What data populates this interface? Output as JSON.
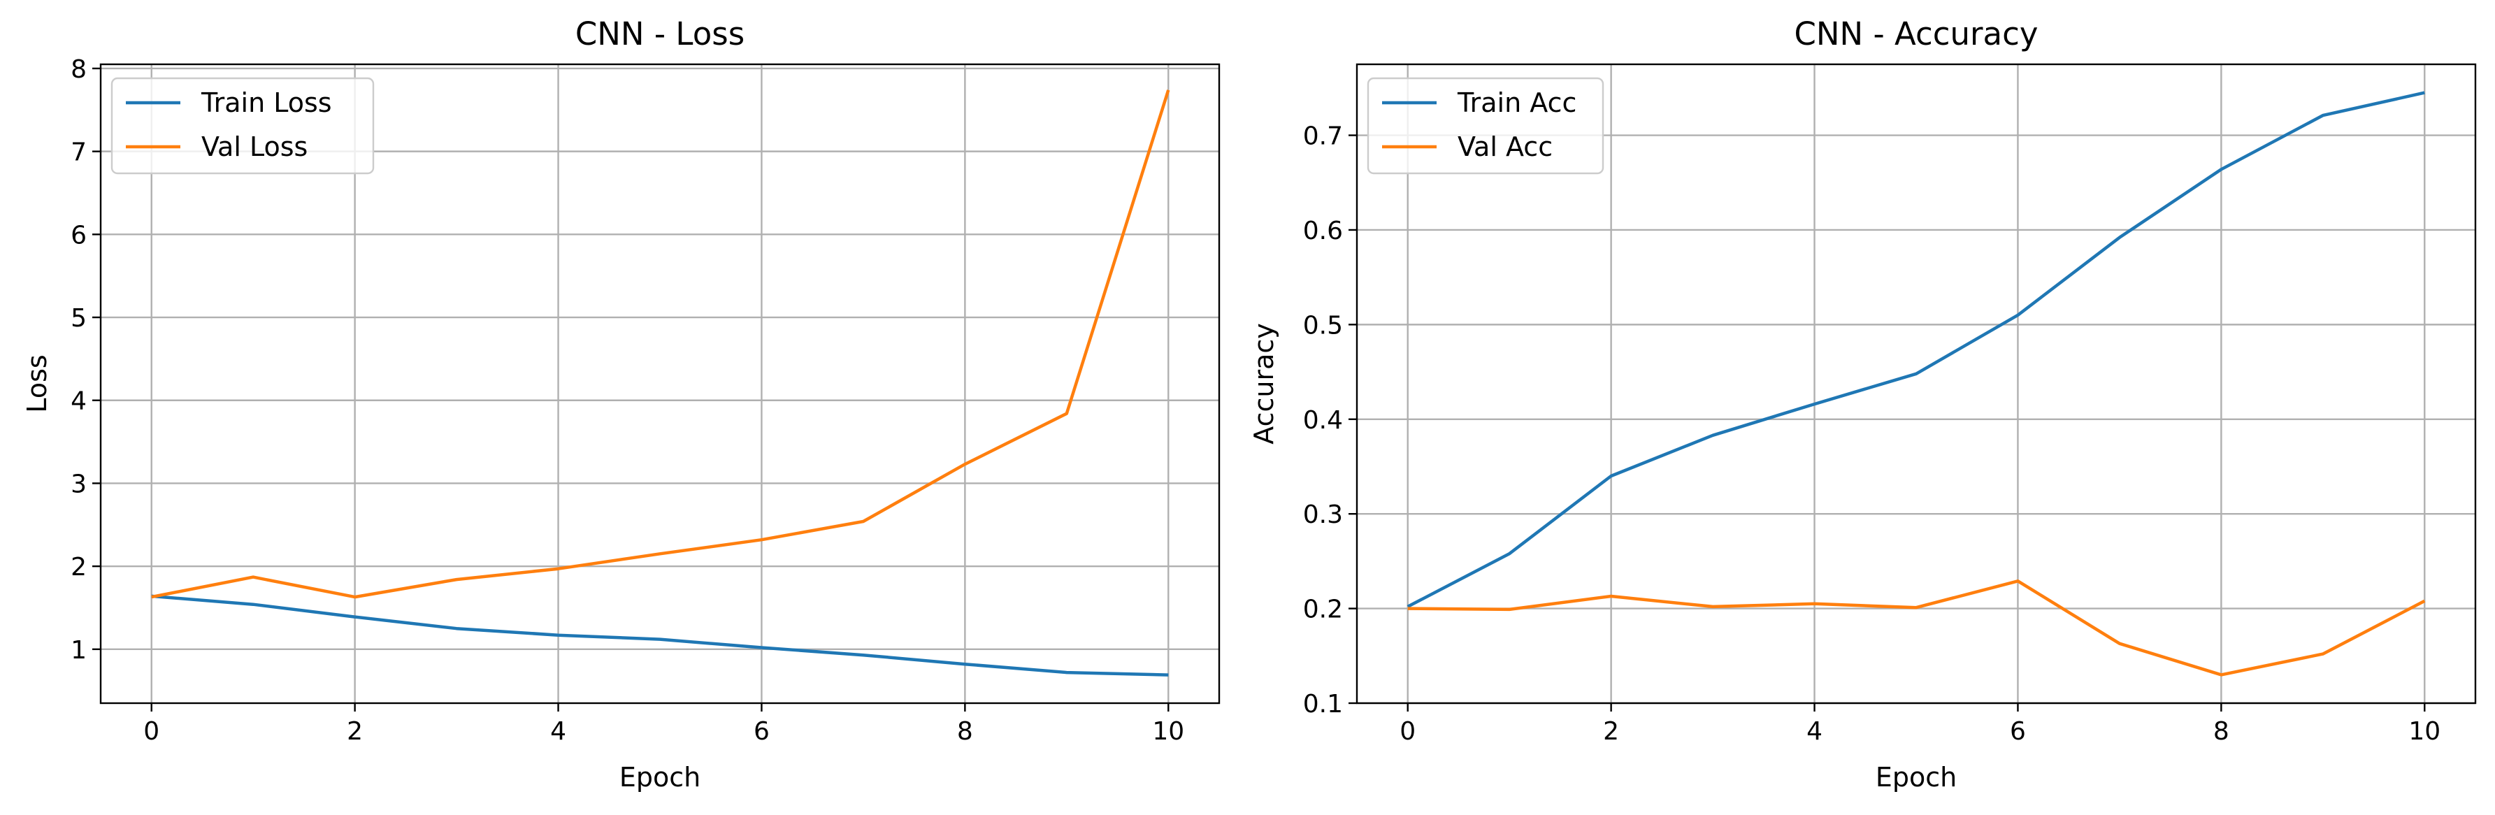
{
  "colors": {
    "train": "#1f77b4",
    "val": "#ff7f0e",
    "grid": "#b0b0b0"
  },
  "chart_data": [
    {
      "type": "line",
      "title": "CNN - Loss",
      "xlabel": "Epoch",
      "ylabel": "Loss",
      "x": [
        0,
        1,
        2,
        3,
        4,
        5,
        6,
        7,
        8,
        9,
        10
      ],
      "xlim": [
        -0.5,
        10.5
      ],
      "ylim": [
        0.35,
        8.05
      ],
      "xticks": [
        0,
        2,
        4,
        6,
        8,
        10
      ],
      "yticks": [
        1,
        2,
        3,
        4,
        5,
        6,
        7,
        8
      ],
      "grid": true,
      "legend_position": "top-left",
      "series": [
        {
          "name": "Train Loss",
          "color": "#1f77b4",
          "values": [
            1.64,
            1.54,
            1.39,
            1.25,
            1.17,
            1.12,
            1.02,
            0.93,
            0.82,
            0.72,
            0.69
          ]
        },
        {
          "name": "Val Loss",
          "color": "#ff7f0e",
          "values": [
            1.63,
            1.87,
            1.63,
            1.84,
            1.97,
            2.15,
            2.32,
            2.54,
            3.23,
            3.84,
            7.74
          ]
        }
      ]
    },
    {
      "type": "line",
      "title": "CNN - Accuracy",
      "xlabel": "Epoch",
      "ylabel": "Accuracy",
      "x": [
        0,
        1,
        2,
        3,
        4,
        5,
        6,
        7,
        8,
        9,
        10
      ],
      "xlim": [
        -0.5,
        10.5
      ],
      "ylim": [
        0.1,
        0.775
      ],
      "xticks": [
        0,
        2,
        4,
        6,
        8,
        10
      ],
      "yticks": [
        0.1,
        0.2,
        0.3,
        0.4,
        0.5,
        0.6,
        0.7
      ],
      "grid": true,
      "legend_position": "top-left",
      "series": [
        {
          "name": "Train Acc",
          "color": "#1f77b4",
          "values": [
            0.202,
            0.258,
            0.34,
            0.383,
            0.416,
            0.448,
            0.51,
            0.592,
            0.664,
            0.721,
            0.745
          ]
        },
        {
          "name": "Val Acc",
          "color": "#ff7f0e",
          "values": [
            0.2,
            0.199,
            0.213,
            0.202,
            0.205,
            0.201,
            0.229,
            0.163,
            0.13,
            0.152,
            0.208
          ]
        }
      ]
    }
  ]
}
